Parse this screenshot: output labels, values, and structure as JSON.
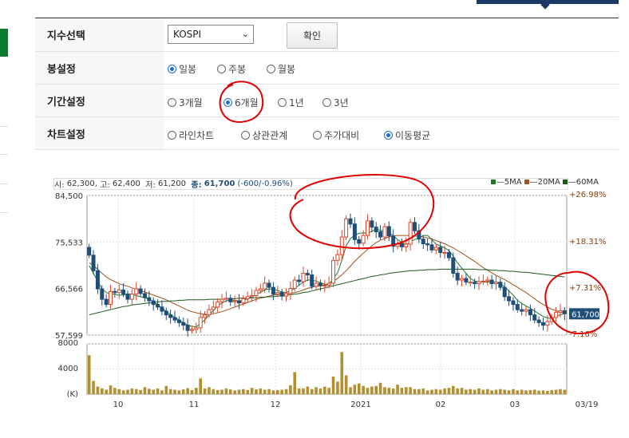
{
  "settings": {
    "index_label": "지수선택",
    "index_value": "KOSPI",
    "confirm_label": "확인",
    "candle_label": "봉설정",
    "candle_options": [
      {
        "label": "일봉",
        "selected": true
      },
      {
        "label": "주봉",
        "selected": false
      },
      {
        "label": "월봉",
        "selected": false
      }
    ],
    "period_label": "기간설정",
    "period_options": [
      {
        "label": "3개월",
        "selected": false
      },
      {
        "label": "6개월",
        "selected": true
      },
      {
        "label": "1년",
        "selected": false
      },
      {
        "label": "3년",
        "selected": false
      }
    ],
    "chart_label": "차트설정",
    "chart_options": [
      {
        "label": "라인차트",
        "selected": false
      },
      {
        "label": "상관관계",
        "selected": false
      },
      {
        "label": "주가대비",
        "selected": false
      },
      {
        "label": "이동평균",
        "selected": true
      }
    ]
  },
  "info": {
    "open_label": "시:",
    "open": "62,300",
    "high_label": "고:",
    "high": "62,400",
    "low_label": "저:",
    "low": "61,200",
    "close_label": "종:",
    "close": "61,700",
    "change": "(-600/-0.96%)"
  },
  "legend": [
    {
      "name": "5MA",
      "color": "#1a7a2a"
    },
    {
      "name": "20MA",
      "color": "#a0521a"
    },
    {
      "name": "60MA",
      "color": "#1a5a1a"
    }
  ],
  "colors": {
    "up": "#d9472b",
    "down": "#1f4e79",
    "volume": "#b38f2f",
    "annotation": "#e00000"
  },
  "chart_data": {
    "type": "candlestick",
    "y_ticks": [
      "84,500",
      "75,533",
      "66,566",
      "57,599"
    ],
    "y_range": [
      57599,
      84500
    ],
    "pct_ticks": [
      "+26.98%",
      "+18.31%",
      "+7.31%",
      "-7.16%"
    ],
    "current_price_label": "61,700",
    "volume_ticks": [
      "8000",
      "4000",
      "(K)"
    ],
    "volume_range": [
      0,
      8000
    ],
    "x_ticks": [
      "10",
      "11",
      "12",
      "2021",
      "02",
      "03",
      "03/19"
    ],
    "closes": [
      73000,
      70000,
      66500,
      64500,
      63500,
      66000,
      65800,
      66300,
      65500,
      64500,
      65500,
      66500,
      65600,
      64800,
      64200,
      63500,
      63000,
      62200,
      61500,
      61000,
      60500,
      60000,
      59500,
      58500,
      58700,
      59000,
      61000,
      61500,
      62500,
      63000,
      64000,
      64500,
      64700,
      64000,
      64200,
      63800,
      64600,
      65000,
      65200,
      66200,
      66500,
      67600,
      66800,
      65500,
      65800,
      65100,
      65600,
      66600,
      68200,
      67900,
      69500,
      69200,
      67000,
      67600,
      67100,
      67200,
      67600,
      72000,
      73100,
      76500,
      80000,
      79000,
      76000,
      75300,
      76800,
      79600,
      78400,
      77500,
      76500,
      78500,
      76700,
      74700,
      75200,
      74600,
      75100,
      79300,
      77700,
      76100,
      75200,
      75000,
      74000,
      74500,
      73500,
      73500,
      72500,
      69500,
      68200,
      68500,
      67800,
      67800,
      67500,
      67900,
      68000,
      68200,
      67500,
      67800,
      66800,
      65000,
      64200,
      63500,
      62500,
      62200,
      62500,
      61500,
      60500,
      60000,
      59500,
      60200,
      61000,
      62000,
      62300,
      61700
    ],
    "volumes": [
      6200,
      2100,
      1200,
      900,
      700,
      1400,
      1000,
      800,
      600,
      700,
      900,
      800,
      650,
      1100,
      850,
      700,
      900,
      600,
      1300,
      800,
      700,
      600,
      750,
      950,
      650,
      1000,
      2500,
      900,
      1100,
      800,
      650,
      700,
      900,
      750,
      600,
      700,
      800,
      650,
      1000,
      750,
      900,
      700,
      800,
      600,
      650,
      700,
      800,
      1400,
      3500,
      900,
      900,
      1200,
      800,
      1100,
      900,
      1200,
      1000,
      2800,
      2000,
      6700,
      3000,
      1100,
      1500,
      1700,
      1300,
      1000,
      1200,
      1300,
      1800,
      1100,
      1000,
      900,
      1500,
      1000,
      1100,
      1100,
      800,
      800,
      900,
      600,
      700,
      800,
      700,
      900,
      1000,
      1300,
      900,
      1000,
      700,
      800,
      700,
      900,
      700,
      800,
      600,
      700,
      800,
      700,
      600,
      800,
      600,
      700,
      600,
      650,
      700,
      550,
      600,
      500,
      650,
      700,
      800,
      700
    ],
    "ma5": [
      71000,
      69500,
      68000,
      66500,
      65800,
      65500,
      65500,
      65300,
      65300,
      65500,
      65500,
      65200,
      65000,
      64800,
      64500,
      64000,
      63500,
      62800,
      62200,
      61600,
      61000,
      60500,
      60000,
      59500,
      59300,
      59200,
      59800,
      60500,
      61500,
      62300,
      63200,
      63800,
      64200,
      64400,
      64300,
      64200,
      64300,
      64600,
      65000,
      65500,
      65800,
      66300,
      66500,
      66400,
      66200,
      65900,
      65800,
      66100,
      66600,
      67200,
      67800,
      68200,
      68200,
      68000,
      67700,
      67400,
      67300,
      68500,
      69600,
      72000,
      74800,
      76200,
      76800,
      77200,
      77300,
      77200,
      77600,
      78000,
      77800,
      77600,
      77300,
      76800,
      76000,
      75500,
      75000,
      75600,
      76000,
      76300,
      76800,
      76800,
      76000,
      75100,
      74800,
      74400,
      73900,
      72800,
      71500,
      70500,
      69500,
      68500,
      68000,
      67900,
      67800,
      67800,
      67800,
      67800,
      67500,
      66900,
      66100,
      65300,
      64300,
      63700,
      63200,
      62800,
      62200,
      61700,
      61200,
      60900,
      60800,
      61100,
      61500,
      61800
    ],
    "ma20": [
      71500,
      71000,
      70300,
      69500,
      68800,
      68300,
      67900,
      67500,
      67200,
      67000,
      66700,
      66400,
      66200,
      65900,
      65600,
      65300,
      65000,
      64700,
      64400,
      64000,
      63600,
      63200,
      62800,
      62400,
      62100,
      61900,
      61700,
      61600,
      61600,
      61700,
      61900,
      62100,
      62400,
      62700,
      63000,
      63300,
      63600,
      63900,
      64200,
      64500,
      64700,
      64900,
      65100,
      65300,
      65400,
      65500,
      65600,
      65700,
      65800,
      66000,
      66300,
      66600,
      66800,
      67000,
      67100,
      67300,
      67500,
      68000,
      68500,
      69200,
      70000,
      70900,
      71800,
      72600,
      73400,
      74100,
      74800,
      75400,
      75900,
      76200,
      76500,
      76700,
      76800,
      76800,
      76800,
      76800,
      76700,
      76600,
      76500,
      76300,
      76100,
      75800,
      75500,
      75200,
      74800,
      74400,
      73900,
      73400,
      72900,
      72300,
      71800,
      71200,
      70600,
      70100,
      69600,
      69100,
      68700,
      68300,
      67800,
      67300,
      66800,
      66300,
      65800,
      65200,
      64600,
      64000,
      63500,
      63000,
      62600,
      62300,
      62000,
      61900
    ],
    "ma60": [
      61500,
      61700,
      61900,
      62100,
      62300,
      62500,
      62700,
      62900,
      63100,
      63200,
      63400,
      63500,
      63600,
      63700,
      63800,
      63900,
      64000,
      64100,
      64100,
      64200,
      64200,
      64300,
      64300,
      64400,
      64400,
      64400,
      64400,
      64400,
      64500,
      64500,
      64500,
      64500,
      64600,
      64600,
      64600,
      64700,
      64700,
      64700,
      64800,
      64800,
      64900,
      64900,
      65000,
      65000,
      65100,
      65200,
      65300,
      65400,
      65500,
      65600,
      65800,
      65900,
      66100,
      66300,
      66500,
      66700,
      66900,
      67100,
      67300,
      67500,
      67700,
      67900,
      68100,
      68300,
      68500,
      68700,
      68900,
      69000,
      69200,
      69300,
      69500,
      69600,
      69700,
      69800,
      69900,
      70000,
      70000,
      70100,
      70100,
      70200,
      70200,
      70200,
      70300,
      70300,
      70300,
      70300,
      70300,
      70300,
      70300,
      70300,
      70300,
      70200,
      70200,
      70200,
      70100,
      70100,
      70000,
      70000,
      69900,
      69900,
      69800,
      69700,
      69700,
      69600,
      69500,
      69400,
      69300,
      69200,
      69100,
      69000,
      68900,
      68800
    ]
  }
}
